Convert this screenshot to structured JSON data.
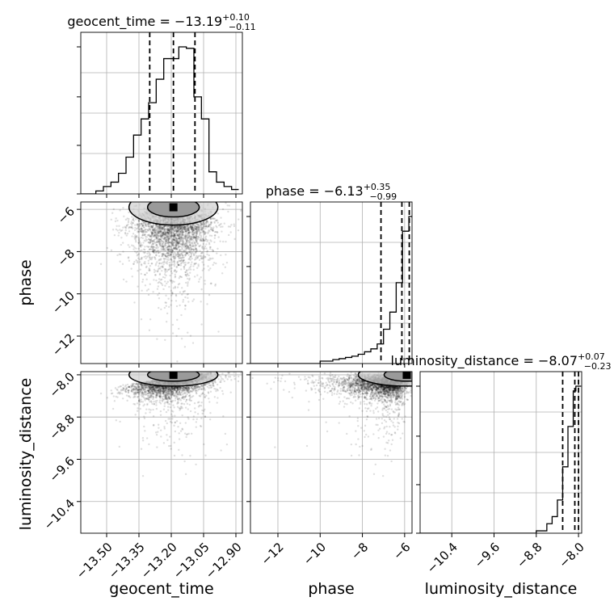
{
  "chart_data": {
    "type": "corner",
    "parameters": [
      "geocent_time",
      "phase",
      "luminosity_distance"
    ],
    "axis_labels": {
      "x": [
        "geocent_time",
        "phase",
        "luminosity_distance"
      ],
      "y": [
        "",
        "phase",
        "luminosity_distance"
      ]
    },
    "ranges": {
      "geocent_time": [
        -13.62,
        -12.87
      ],
      "phase": [
        -13.3,
        -5.65
      ],
      "luminosity_distance": [
        -11.0,
        -7.94
      ]
    },
    "ticks": {
      "geocent_time": {
        "values": [
          -13.5,
          -13.35,
          -13.2,
          -13.05,
          -12.9
        ],
        "labels": [
          "−13.50",
          "−13.35",
          "−13.20",
          "−13.05",
          "−12.90"
        ]
      },
      "phase": {
        "values": [
          -12,
          -10,
          -8,
          -6
        ],
        "labels": [
          "−12",
          "−10",
          "−8",
          "−6"
        ]
      },
      "luminosity_distance": {
        "values": [
          -10.4,
          -9.6,
          -8.8,
          -8.0
        ],
        "labels": [
          "−10.4",
          "−9.6",
          "−8.8",
          "−8.0"
        ]
      }
    },
    "diag_titles": [
      {
        "name": "geocent_time",
        "median": "−13.19",
        "plus": "+0.10",
        "minus": "−0.11"
      },
      {
        "name": "phase",
        "median": "−6.13",
        "plus": "+0.35",
        "minus": "−0.99"
      },
      {
        "name": "luminosity_distance",
        "median": "−8.07",
        "plus": "+0.07",
        "minus": "−0.23"
      }
    ],
    "quantiles": {
      "geocent_time": [
        -13.3,
        -13.19,
        -13.09
      ],
      "phase": [
        -7.12,
        -6.13,
        -5.78
      ],
      "luminosity_distance": [
        -8.3,
        -8.07,
        -8.0
      ]
    },
    "histograms": {
      "geocent_time": {
        "edges": [
          -13.62,
          -13.585,
          -13.55,
          -13.515,
          -13.48,
          -13.445,
          -13.41,
          -13.375,
          -13.34,
          -13.305,
          -13.27,
          -13.235,
          -13.2,
          -13.165,
          -13.13,
          -13.095,
          -13.06,
          -13.025,
          -12.99,
          -12.955,
          -12.92,
          -12.887
        ],
        "counts": [
          0,
          0,
          2,
          5,
          8,
          14,
          25,
          40,
          51,
          62,
          78,
          92,
          92,
          100,
          99,
          66,
          51,
          15,
          8,
          5,
          3
        ]
      },
      "phase": {
        "edges": [
          -13.3,
          -13.0,
          -12.7,
          -12.4,
          -12.1,
          -11.8,
          -11.5,
          -11.2,
          -10.9,
          -10.6,
          -10.3,
          -10.0,
          -9.7,
          -9.4,
          -9.1,
          -8.8,
          -8.5,
          -8.2,
          -7.9,
          -7.6,
          -7.3,
          -7.0,
          -6.7,
          -6.4,
          -6.1,
          -5.8,
          -5.65
        ],
        "counts": [
          0,
          0,
          0,
          0,
          0,
          0,
          0,
          0,
          0,
          0,
          0,
          1,
          1,
          1.6,
          2,
          2.5,
          3,
          3.8,
          4.8,
          6,
          8,
          14,
          21,
          33,
          54,
          60
        ]
      },
      "luminosity_distance": {
        "edges": [
          -11.0,
          -10.8,
          -10.6,
          -10.4,
          -10.2,
          -10.0,
          -9.8,
          -9.6,
          -9.4,
          -9.2,
          -9.0,
          -8.8,
          -8.6,
          -8.5,
          -8.4,
          -8.3,
          -8.2,
          -8.1,
          -8.05,
          -7.95
        ],
        "counts": [
          0,
          0,
          0,
          0,
          0,
          0,
          0,
          0,
          0,
          0,
          0,
          1,
          4,
          7,
          14,
          28,
          45,
          60,
          62
        ]
      }
    },
    "scatter_points": 3000,
    "grid": true
  }
}
